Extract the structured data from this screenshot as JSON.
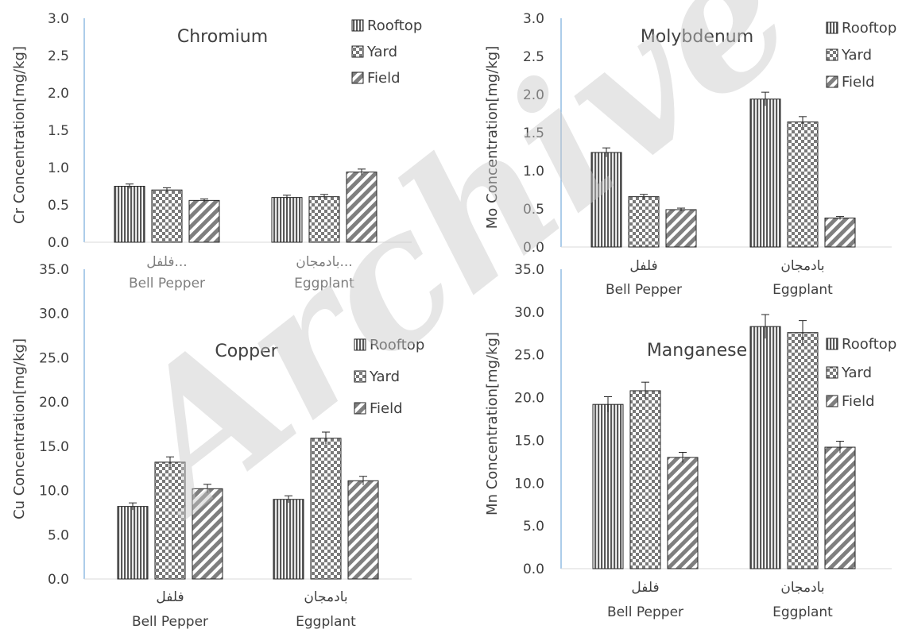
{
  "watermark": "Archive",
  "colors": {
    "rooftop": "#595959",
    "yard": "#7f7f7f",
    "field": "#7f7f7f",
    "axis": "#5b9bd5",
    "text": "#404040",
    "category_dim": "#7f7f7f"
  },
  "chart_data": [
    {
      "type": "bar",
      "title": "Chromium",
      "ylabel": "Cr Concentration[mg/kg]",
      "ylim": [
        0,
        3.0
      ],
      "yticks": [
        "0.0",
        "0.5",
        "1.0",
        "1.5",
        "2.0",
        "2.5",
        "3.0"
      ],
      "categories": [
        {
          "native": "فلفل...",
          "english": "Bell Pepper"
        },
        {
          "native": "بادمجان...",
          "english": "Eggplant"
        }
      ],
      "series": [
        {
          "name": "Rooftop",
          "values": [
            0.75,
            0.6
          ],
          "errors": [
            0.03,
            0.03
          ]
        },
        {
          "name": "Yard",
          "values": [
            0.7,
            0.61
          ],
          "errors": [
            0.03,
            0.03
          ]
        },
        {
          "name": "Field",
          "values": [
            0.56,
            0.94
          ],
          "errors": [
            0.02,
            0.04
          ]
        }
      ],
      "legend": "top-right"
    },
    {
      "type": "bar",
      "title": "Molybdenum",
      "ylabel": "Mo Concentration[mg/kg]",
      "ylim": [
        0,
        3.0
      ],
      "yticks": [
        "0.0",
        "0.5",
        "1.0",
        "1.5",
        "2.0",
        "2.5",
        "3.0"
      ],
      "categories": [
        {
          "native": "فلفل",
          "english": "Bell Pepper"
        },
        {
          "native": "بادمجان",
          "english": "Eggplant"
        }
      ],
      "series": [
        {
          "name": "Rooftop",
          "values": [
            1.24,
            1.94
          ],
          "errors": [
            0.06,
            0.09
          ]
        },
        {
          "name": "Yard",
          "values": [
            0.66,
            1.64
          ],
          "errors": [
            0.03,
            0.07
          ]
        },
        {
          "name": "Field",
          "values": [
            0.49,
            0.38
          ],
          "errors": [
            0.02,
            0.02
          ]
        }
      ],
      "legend": "top-right"
    },
    {
      "type": "bar",
      "title": "Copper",
      "ylabel": "Cu Concentration[mg/kg]",
      "ylim": [
        0,
        35.0
      ],
      "yticks": [
        "0.0",
        "5.0",
        "10.0",
        "15.0",
        "20.0",
        "25.0",
        "30.0",
        "35.0"
      ],
      "categories": [
        {
          "native": "فلفل",
          "english": "Bell Pepper"
        },
        {
          "native": "بادمجان",
          "english": "Eggplant"
        }
      ],
      "series": [
        {
          "name": "Rooftop",
          "values": [
            8.2,
            9.0
          ],
          "errors": [
            0.4,
            0.4
          ]
        },
        {
          "name": "Yard",
          "values": [
            13.2,
            15.9
          ],
          "errors": [
            0.6,
            0.7
          ]
        },
        {
          "name": "Field",
          "values": [
            10.2,
            11.1
          ],
          "errors": [
            0.5,
            0.5
          ]
        }
      ],
      "legend": "top-right"
    },
    {
      "type": "bar",
      "title": "Manganese",
      "ylabel": "Mn Concentration[mg/kg]",
      "ylim": [
        0,
        35.0
      ],
      "yticks": [
        "0.0",
        "5.0",
        "10.0",
        "15.0",
        "20.0",
        "25.0",
        "30.0",
        "35.0"
      ],
      "categories": [
        {
          "native": "فلفل",
          "english": "Bell Pepper"
        },
        {
          "native": "بادمجان",
          "english": "Eggplant"
        }
      ],
      "series": [
        {
          "name": "Rooftop",
          "values": [
            19.2,
            28.3
          ],
          "errors": [
            0.9,
            1.4
          ]
        },
        {
          "name": "Yard",
          "values": [
            20.8,
            27.6
          ],
          "errors": [
            1.0,
            1.4
          ]
        },
        {
          "name": "Field",
          "values": [
            13.0,
            14.2
          ],
          "errors": [
            0.6,
            0.7
          ]
        }
      ],
      "legend": "top-right"
    }
  ]
}
